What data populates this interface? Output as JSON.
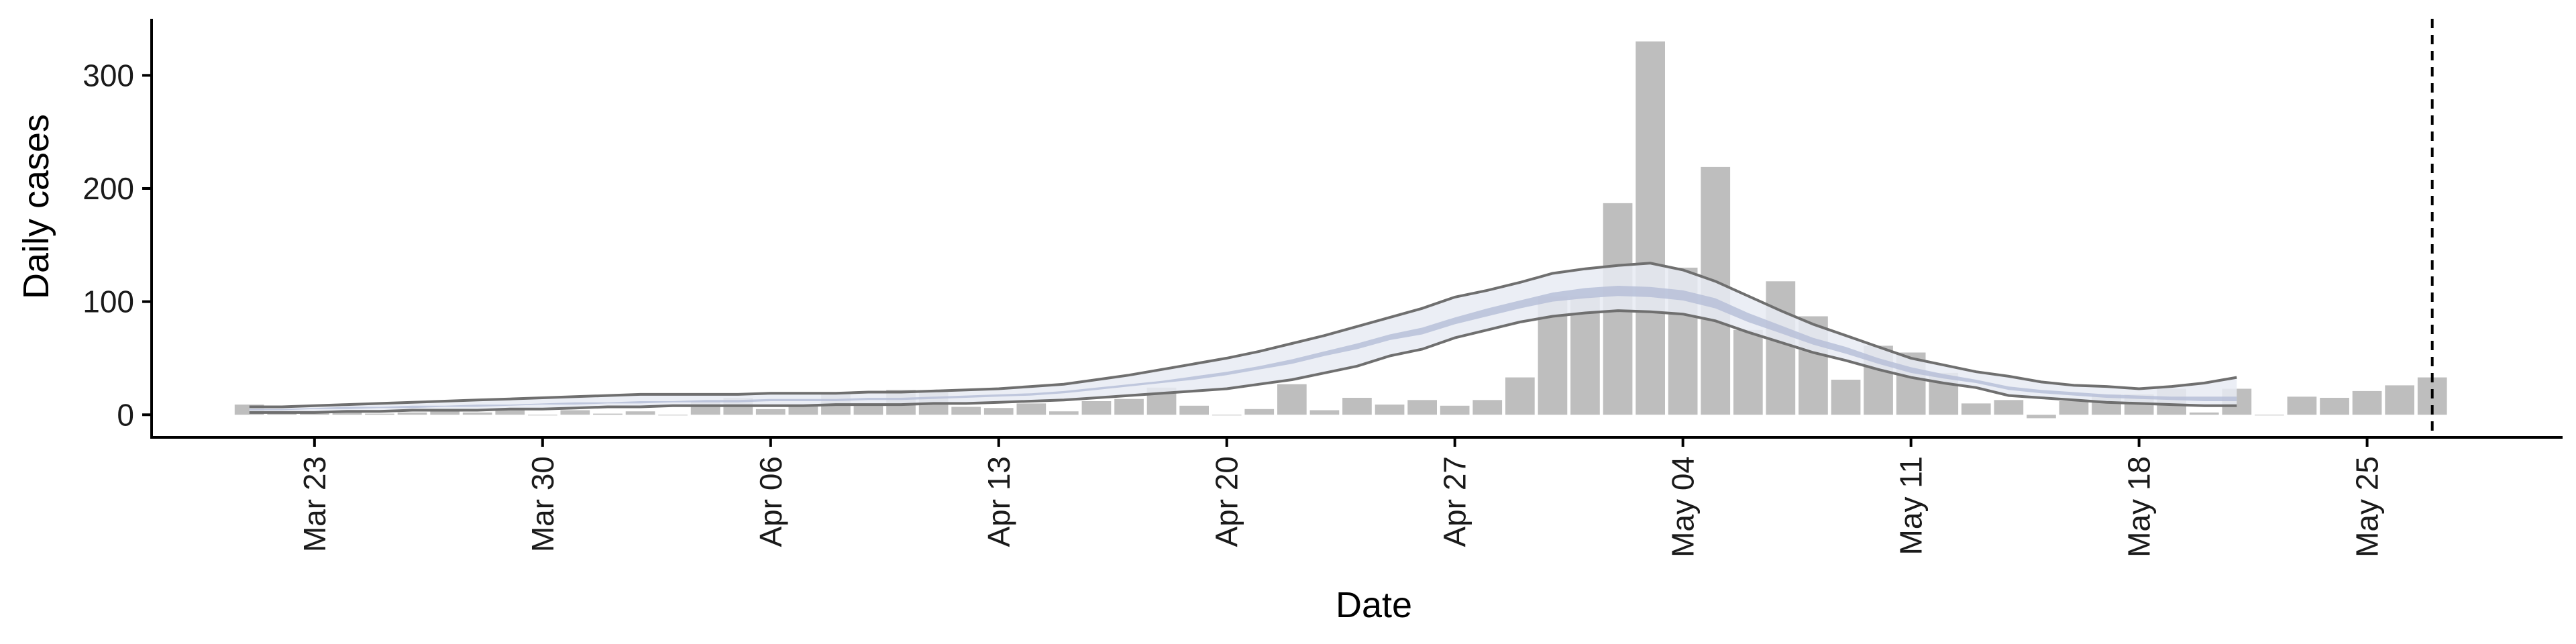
{
  "chart_data": {
    "type": "bar",
    "title": "",
    "xlabel": "Date",
    "ylabel": "Daily cases",
    "x_range": [
      "2020-03-18",
      "2020-05-31"
    ],
    "ylim": [
      -20,
      350
    ],
    "yticks": [
      0,
      100,
      200,
      300
    ],
    "xticks": [
      {
        "date": "2020-03-23",
        "label": "Mar 23"
      },
      {
        "date": "2020-03-30",
        "label": "Mar 30"
      },
      {
        "date": "2020-04-06",
        "label": "Apr 06"
      },
      {
        "date": "2020-04-13",
        "label": "Apr 13"
      },
      {
        "date": "2020-04-20",
        "label": "Apr 20"
      },
      {
        "date": "2020-04-27",
        "label": "Apr 27"
      },
      {
        "date": "2020-05-04",
        "label": "May 04"
      },
      {
        "date": "2020-05-11",
        "label": "May 11"
      },
      {
        "date": "2020-05-18",
        "label": "May 18"
      },
      {
        "date": "2020-05-25",
        "label": "May 25"
      }
    ],
    "grid": false,
    "legend": "none",
    "reference_line": {
      "date": "2020-05-27",
      "style": "dashed"
    },
    "colors": {
      "bars": "#bebebe",
      "band_outer": "#e8ebf3",
      "band_inner": "#b7c0d8",
      "band_edge": "#6f6f6f",
      "axis": "#000000"
    },
    "bars": {
      "start_date": "2020-03-21",
      "values": [
        9,
        2,
        3,
        2,
        1,
        2,
        3,
        2,
        4,
        0,
        4,
        1,
        3,
        0,
        12,
        15,
        5,
        8,
        20,
        10,
        22,
        20,
        7,
        6,
        10,
        3,
        12,
        14,
        24,
        8,
        0,
        5,
        27,
        4,
        15,
        9,
        13,
        8,
        13,
        33,
        105,
        105,
        187,
        330,
        130,
        219,
        75,
        118,
        87,
        31,
        61,
        55,
        37,
        10,
        13,
        -3,
        12,
        18,
        18,
        23,
        2,
        23,
        0,
        16,
        15,
        21,
        26,
        33
      ]
    },
    "estimate_band": {
      "start_date": "2020-03-21",
      "outer_lower": [
        2,
        2,
        2,
        3,
        3,
        4,
        4,
        4,
        5,
        5,
        6,
        7,
        7,
        8,
        8,
        8,
        8,
        8,
        9,
        9,
        9,
        10,
        10,
        11,
        12,
        13,
        15,
        17,
        19,
        21,
        23,
        27,
        31,
        37,
        43,
        52,
        58,
        68,
        75,
        82,
        87,
        90,
        92,
        91,
        89,
        83,
        73,
        64,
        55,
        48,
        40,
        33,
        28,
        24,
        17,
        15,
        13,
        11,
        10,
        9,
        8,
        8
      ],
      "inner_lower": [
        4,
        4,
        5,
        5,
        6,
        6,
        7,
        7,
        8,
        9,
        9,
        10,
        10,
        11,
        11,
        11,
        12,
        12,
        12,
        13,
        13,
        14,
        15,
        16,
        17,
        19,
        22,
        25,
        28,
        31,
        35,
        40,
        45,
        52,
        58,
        66,
        71,
        80,
        87,
        94,
        100,
        103,
        105,
        104,
        101,
        94,
        82,
        72,
        62,
        54,
        45,
        37,
        32,
        28,
        22,
        19,
        17,
        15,
        14,
        13,
        12,
        12
      ],
      "inner_upper": [
        5,
        5,
        6,
        7,
        7,
        8,
        8,
        9,
        9,
        10,
        11,
        11,
        12,
        12,
        13,
        13,
        14,
        14,
        14,
        15,
        15,
        16,
        17,
        18,
        19,
        21,
        24,
        27,
        30,
        34,
        38,
        43,
        49,
        56,
        63,
        71,
        77,
        86,
        94,
        101,
        108,
        112,
        114,
        113,
        110,
        103,
        90,
        79,
        68,
        60,
        50,
        42,
        36,
        31,
        25,
        22,
        20,
        18,
        17,
        16,
        16,
        16
      ],
      "outer_upper": [
        7,
        7,
        8,
        9,
        10,
        11,
        12,
        13,
        14,
        15,
        16,
        17,
        18,
        18,
        18,
        18,
        19,
        19,
        19,
        20,
        20,
        21,
        22,
        23,
        25,
        27,
        31,
        35,
        40,
        45,
        50,
        56,
        63,
        70,
        78,
        86,
        94,
        104,
        110,
        117,
        125,
        129,
        132,
        134,
        128,
        118,
        105,
        92,
        80,
        70,
        60,
        50,
        44,
        38,
        34,
        29,
        26,
        25,
        23,
        25,
        28,
        33
      ]
    }
  }
}
